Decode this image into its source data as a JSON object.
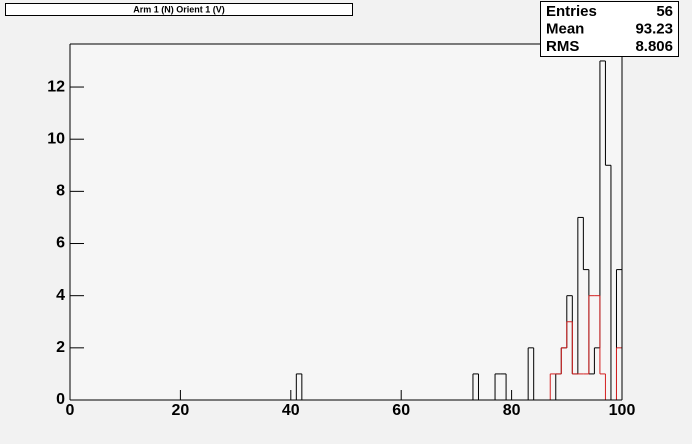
{
  "chart_data": {
    "type": "histogram",
    "title": "Arm 1 (N) Orient 1 (V)",
    "bins": [
      0,
      1,
      2,
      3,
      4,
      5,
      6,
      7,
      8,
      9,
      10,
      11,
      12,
      13,
      14,
      15,
      16,
      17,
      18,
      19,
      20,
      21,
      22,
      23,
      24,
      25,
      26,
      27,
      28,
      29,
      30,
      31,
      32,
      33,
      34,
      35,
      36,
      37,
      38,
      39,
      40,
      41,
      42,
      43,
      44,
      45,
      46,
      47,
      48,
      49,
      50,
      51,
      52,
      53,
      54,
      55,
      56,
      57,
      58,
      59,
      60,
      61,
      62,
      63,
      64,
      65,
      66,
      67,
      68,
      69,
      70,
      71,
      72,
      73,
      74,
      75,
      76,
      77,
      78,
      79,
      80,
      81,
      82,
      83,
      84,
      85,
      86,
      87,
      88,
      89,
      90,
      91,
      92,
      93,
      94,
      95,
      96,
      97,
      98,
      99,
      100
    ],
    "series": [
      {
        "color": "#000000",
        "values": [
          0,
          0,
          0,
          0,
          0,
          0,
          0,
          0,
          0,
          0,
          0,
          0,
          0,
          0,
          0,
          0,
          0,
          0,
          0,
          0,
          0,
          0,
          0,
          0,
          0,
          0,
          0,
          0,
          0,
          0,
          0,
          0,
          0,
          0,
          0,
          0,
          0,
          0,
          0,
          0,
          0,
          1,
          0,
          0,
          0,
          0,
          0,
          0,
          0,
          0,
          0,
          0,
          0,
          0,
          0,
          0,
          0,
          0,
          0,
          0,
          0,
          0,
          0,
          0,
          0,
          0,
          0,
          0,
          0,
          0,
          0,
          0,
          0,
          1,
          0,
          0,
          0,
          1,
          1,
          0,
          0,
          0,
          0,
          2,
          0,
          0,
          0,
          0,
          1,
          2,
          4,
          1,
          7,
          5,
          1,
          2,
          13,
          9,
          0,
          5
        ]
      },
      {
        "color": "#d42020",
        "values": [
          0,
          0,
          0,
          0,
          0,
          0,
          0,
          0,
          0,
          0,
          0,
          0,
          0,
          0,
          0,
          0,
          0,
          0,
          0,
          0,
          0,
          0,
          0,
          0,
          0,
          0,
          0,
          0,
          0,
          0,
          0,
          0,
          0,
          0,
          0,
          0,
          0,
          0,
          0,
          0,
          0,
          0,
          0,
          0,
          0,
          0,
          0,
          0,
          0,
          0,
          0,
          0,
          0,
          0,
          0,
          0,
          0,
          0,
          0,
          0,
          0,
          0,
          0,
          0,
          0,
          0,
          0,
          0,
          0,
          0,
          0,
          0,
          0,
          0,
          0,
          0,
          0,
          0,
          0,
          0,
          0,
          0,
          0,
          0,
          0,
          0,
          0,
          1,
          1,
          2,
          3,
          1,
          1,
          1,
          4,
          4,
          1,
          0,
          0,
          2
        ]
      }
    ],
    "xlim": [
      0,
      100
    ],
    "xticks": [
      0,
      20,
      40,
      60,
      80,
      100
    ],
    "ylim": [
      0,
      13.65
    ],
    "yticks": [
      0,
      2,
      4,
      6,
      8,
      10,
      12
    ],
    "stats": [
      {
        "label": "Entries",
        "value": 56
      },
      {
        "label": "Mean",
        "value": 93.23
      },
      {
        "label": "RMS",
        "value": 8.806
      }
    ]
  }
}
